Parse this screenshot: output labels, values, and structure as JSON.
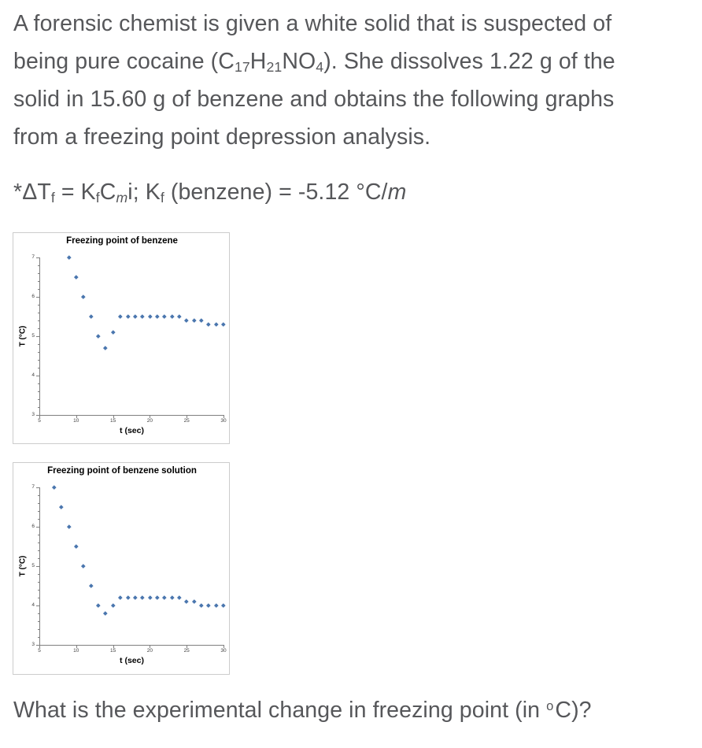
{
  "page": {
    "background": "#ffffff",
    "text_color": "#56575a"
  },
  "problem": {
    "statement_lines": [
      [
        {
          "t": "A forensic chemist is given a white solid that is suspected of"
        }
      ],
      [
        {
          "t": "being pure cocaine (C"
        },
        {
          "t": "17",
          "s": "sub"
        },
        {
          "t": "H"
        },
        {
          "t": "21",
          "s": "sub"
        },
        {
          "t": "NO"
        },
        {
          "t": "4",
          "s": "sub"
        },
        {
          "t": "). She dissolves 1.22 g of the"
        }
      ],
      [
        {
          "t": "solid in 15.60 g of benzene and obtains the following graphs"
        }
      ],
      [
        {
          "t": "from a freezing point depression analysis."
        }
      ]
    ],
    "formula": [
      {
        "t": "*ΔT"
      },
      {
        "t": "f",
        "s": "sub"
      },
      {
        "t": " = K"
      },
      {
        "t": "f",
        "s": "sub"
      },
      {
        "t": "C"
      },
      {
        "t": "m",
        "s": "subi"
      },
      {
        "t": "i; K"
      },
      {
        "t": "f",
        "s": "sub"
      },
      {
        "t": " (benzene) = -5.12 °C/"
      },
      {
        "t": "m",
        "s": "i"
      }
    ],
    "question": [
      {
        "t": "What is the experimental change in freezing point (in "
      },
      {
        "t": "o",
        "s": "sup"
      },
      {
        "t": "C)?"
      }
    ]
  },
  "chart_style": {
    "point_color": "#4a76ae",
    "axis_color": "#7f7f7f",
    "tick_label_color": "#404040",
    "title_color": "#000000",
    "border_color": "#cccccc"
  },
  "chart_data": [
    {
      "type": "scatter",
      "title": "Freezing point of benzene",
      "xlabel": "t (sec)",
      "ylabel": "T (°C)",
      "xlim": [
        5,
        30
      ],
      "ylim": [
        3,
        7
      ],
      "xticks": [
        5,
        10,
        15,
        20,
        25,
        30
      ],
      "yticks": [
        3,
        4,
        5,
        6,
        7
      ],
      "grid": false,
      "legend": false,
      "x": [
        9,
        10,
        11,
        12,
        13,
        14,
        15,
        16,
        17,
        18,
        19,
        20,
        21,
        22,
        23,
        24,
        25,
        26,
        27,
        28,
        29,
        30
      ],
      "y": [
        7.0,
        6.5,
        6.0,
        5.5,
        5.0,
        4.7,
        5.1,
        5.5,
        5.5,
        5.5,
        5.5,
        5.5,
        5.5,
        5.5,
        5.5,
        5.5,
        5.4,
        5.4,
        5.4,
        5.3,
        5.3,
        5.3
      ]
    },
    {
      "type": "scatter",
      "title": "Freezing point of benzene solution",
      "xlabel": "t (sec)",
      "ylabel": "T (°C)",
      "xlim": [
        5,
        30
      ],
      "ylim": [
        3,
        7
      ],
      "xticks": [
        5,
        10,
        15,
        20,
        25,
        30
      ],
      "yticks": [
        3,
        4,
        5,
        6,
        7
      ],
      "grid": false,
      "legend": false,
      "x": [
        7,
        8,
        9,
        10,
        11,
        12,
        13,
        14,
        15,
        16,
        17,
        18,
        19,
        20,
        21,
        22,
        23,
        24,
        25,
        26,
        27,
        28,
        29,
        30
      ],
      "y": [
        7.0,
        6.5,
        6.0,
        5.5,
        5.0,
        4.5,
        4.0,
        3.8,
        4.0,
        4.2,
        4.2,
        4.2,
        4.2,
        4.2,
        4.2,
        4.2,
        4.2,
        4.2,
        4.1,
        4.1,
        4.0,
        4.0,
        4.0,
        4.0
      ]
    }
  ]
}
